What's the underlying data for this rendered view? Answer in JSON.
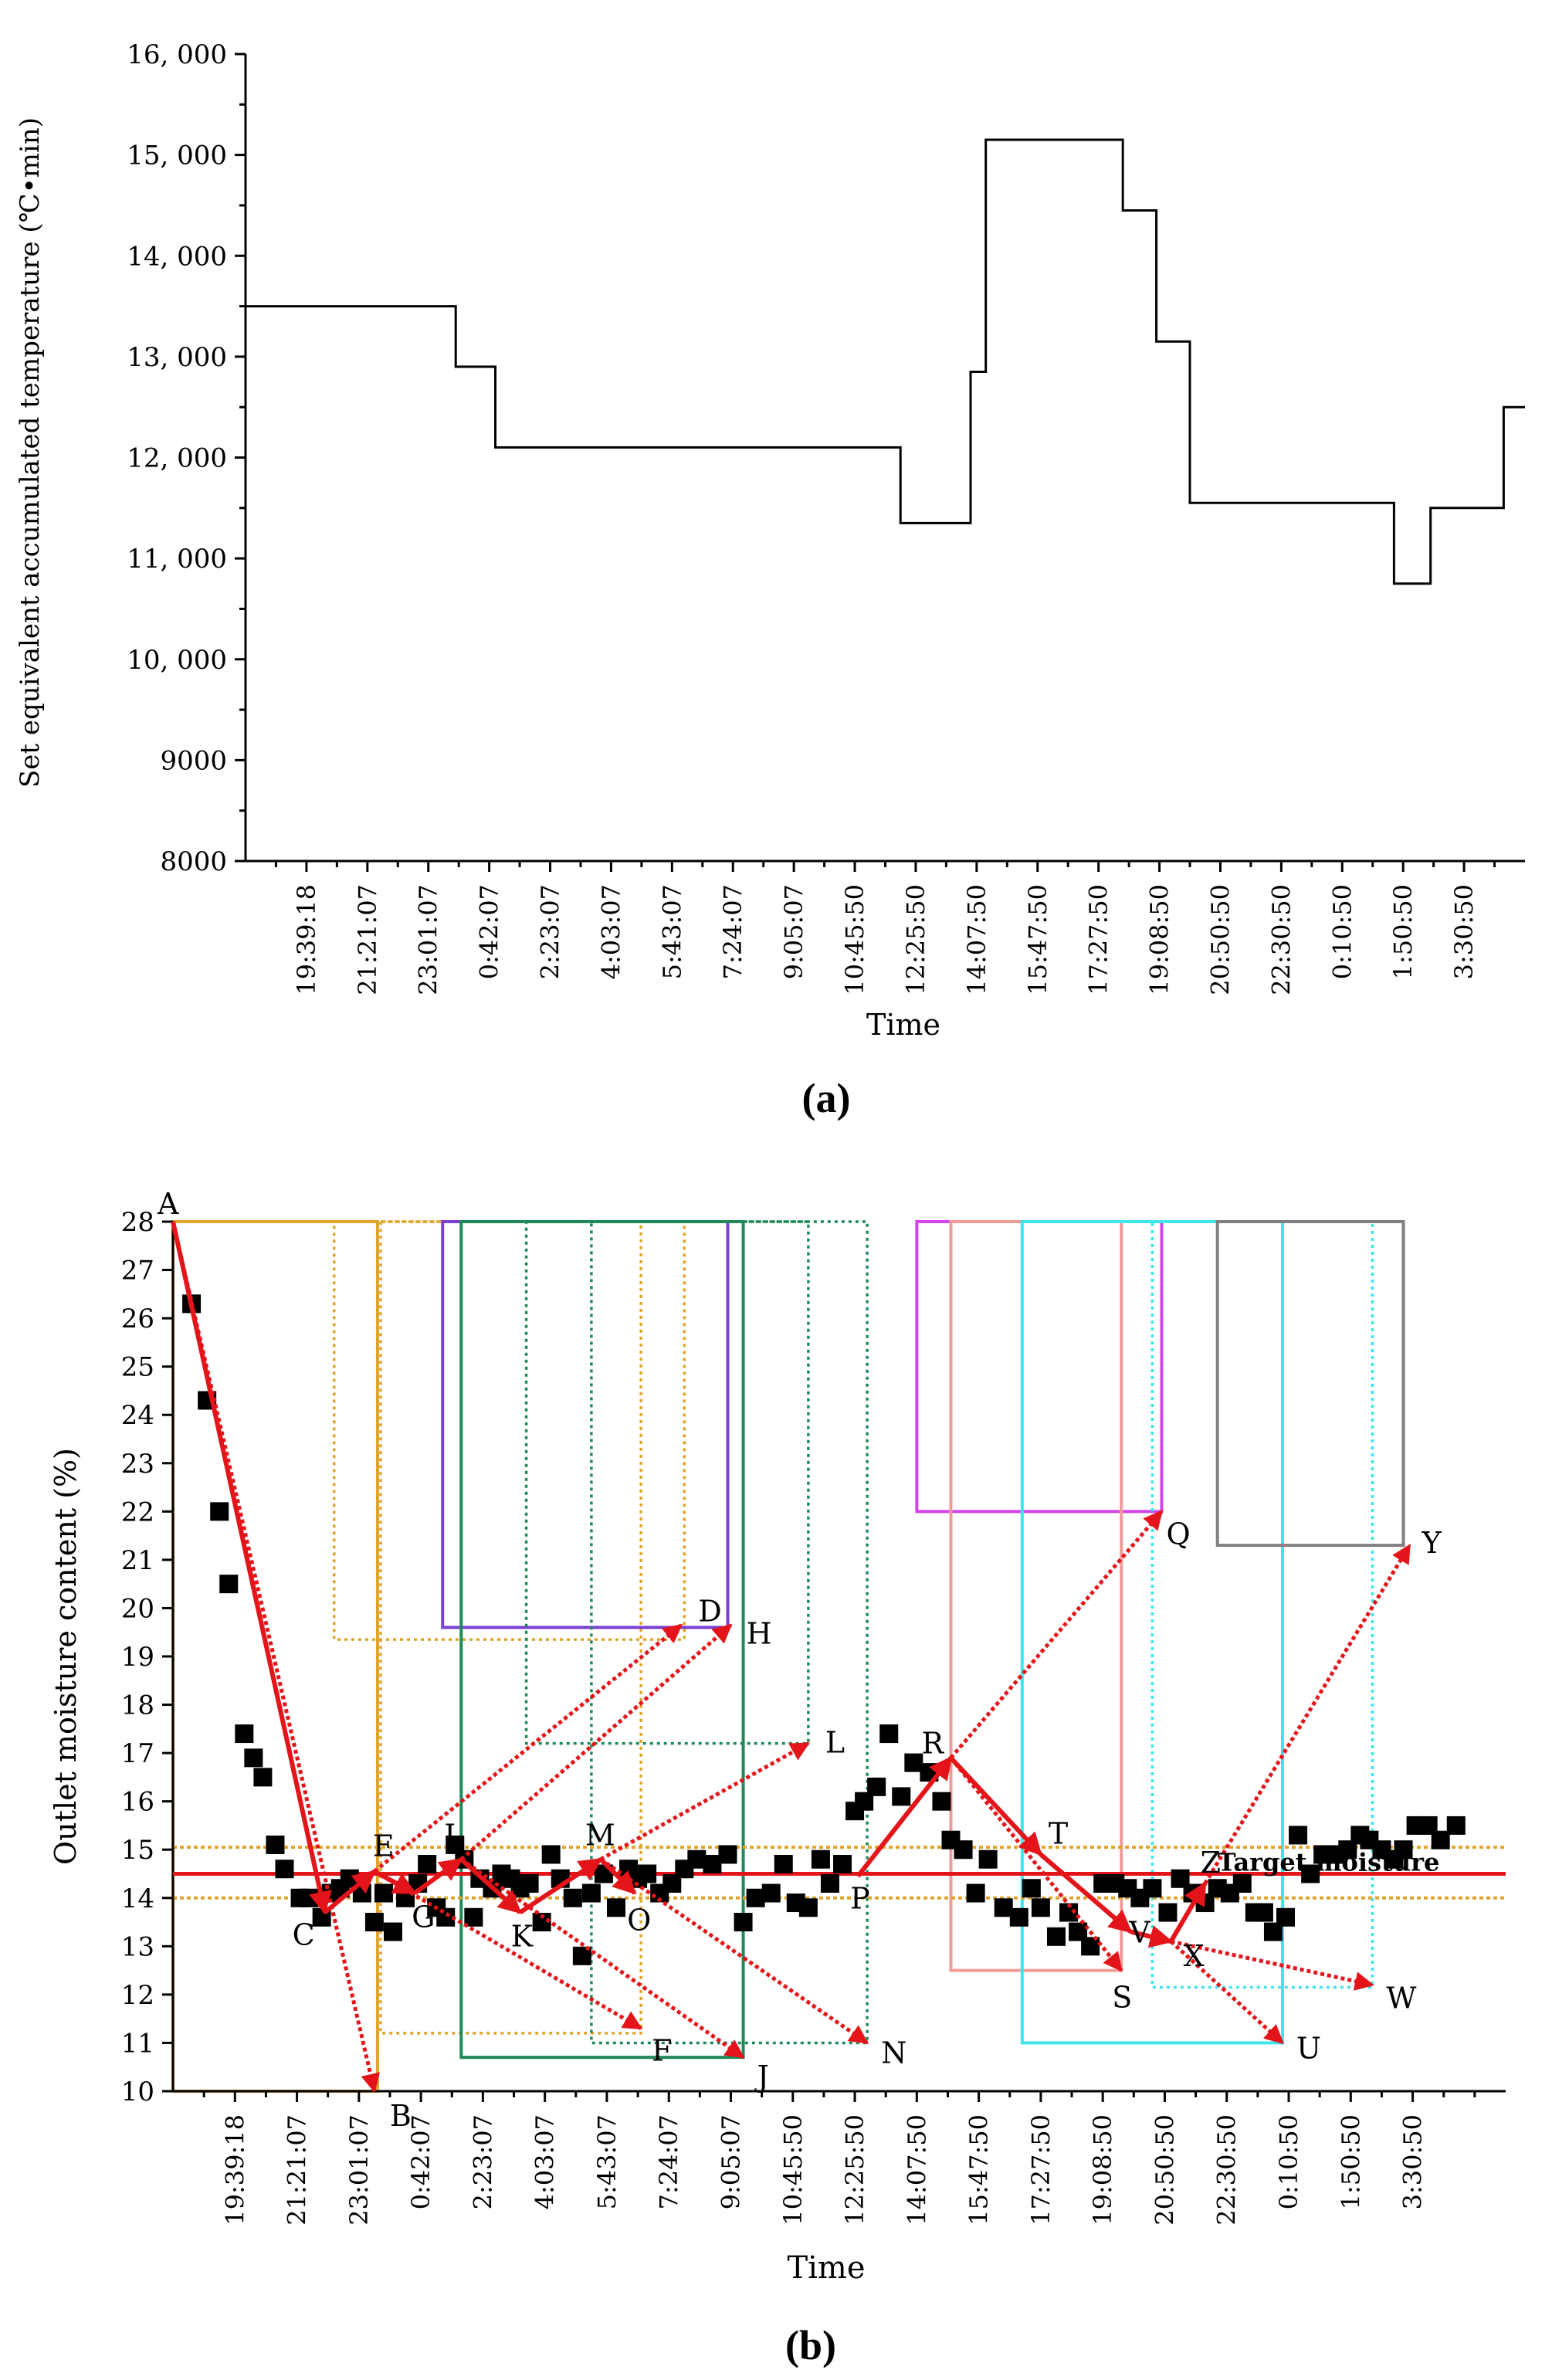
{
  "colors": {
    "axis": "#000000",
    "step_line": "#000000",
    "scatter": "#000000",
    "target_line": "#e3151a",
    "trend_arrow": "#e3151a",
    "band": "#e0a42a",
    "box_orange": "#e0a42a",
    "box_purple": "#7b3fd4",
    "box_green": "#1e8a57",
    "box_magenta": "#d445e8",
    "box_pink": "#f09a9a",
    "box_cyan": "#3fe4ec",
    "box_gray": "#808080"
  },
  "chart_data": [
    {
      "panel_label": "(a)",
      "panel_letter": "a",
      "type": "line",
      "style": "step",
      "xlabel": "Time",
      "ylabel": "Set equivalent accumulated temperature (℃•min)",
      "ylim": [
        8000,
        16000
      ],
      "yticks": [
        8000,
        9000,
        10000,
        11000,
        12000,
        13000,
        14000,
        15000,
        16000
      ],
      "ytick_labels": [
        "8000",
        "9000",
        "10, 000",
        "11, 000",
        "12, 000",
        "13, 000",
        "14, 000",
        "15, 000",
        "16, 000"
      ],
      "xlim": [
        0,
        21
      ],
      "xtick_positions": [
        1,
        2,
        3,
        4,
        5,
        6,
        7,
        8,
        9,
        10,
        11,
        12,
        13,
        14,
        15,
        16,
        17,
        18,
        19,
        20
      ],
      "xtick_labels": [
        "19:39:18",
        "21:21:07",
        "23:01:07",
        "0:42:07",
        "2:23:07",
        "4:03:07",
        "5:43:07",
        "7:24:07",
        "9:05:07",
        "10:45:50",
        "12:25:50",
        "14:07:50",
        "15:47:50",
        "17:27:50",
        "19:08:50",
        "20:50:50",
        "22:30:50",
        "0:10:50",
        "1:50:50",
        "3:30:50"
      ],
      "series": [
        {
          "name": "Set equivalent accumulated temperature",
          "x": [
            0,
            3.45,
            3.45,
            4.1,
            4.1,
            10.75,
            10.75,
            11.9,
            11.9,
            12.15,
            12.15,
            14.4,
            14.4,
            14.95,
            14.95,
            15.5,
            15.5,
            18.85,
            18.85,
            19.45,
            19.45,
            20.65,
            20.65,
            21
          ],
          "y": [
            13500,
            13500,
            12900,
            12900,
            12100,
            12100,
            11350,
            11350,
            12850,
            12850,
            15150,
            15150,
            14450,
            14450,
            13150,
            13150,
            11550,
            11550,
            10750,
            10750,
            11500,
            11500,
            12500,
            12500
          ]
        }
      ]
    },
    {
      "panel_label": "(b)",
      "panel_letter": "b",
      "type": "scatter",
      "xlabel": "Time",
      "ylabel": "Outlet moisture content (%)",
      "ylim": [
        10,
        28
      ],
      "yticks": [
        10,
        11,
        12,
        13,
        14,
        15,
        16,
        17,
        18,
        19,
        20,
        21,
        22,
        23,
        24,
        25,
        26,
        27,
        28
      ],
      "xlim": [
        0,
        21.5
      ],
      "xtick_positions": [
        1,
        2,
        3,
        4,
        5,
        6,
        7,
        8,
        9,
        10,
        11,
        12,
        13,
        14,
        15,
        16,
        17,
        18,
        19,
        20
      ],
      "xtick_labels": [
        "19:39:18",
        "21:21:07",
        "23:01:07",
        "0:42:07",
        "2:23:07",
        "4:03:07",
        "5:43:07",
        "7:24:07",
        "9:05:07",
        "10:45:50",
        "12:25:50",
        "14:07:50",
        "15:47:50",
        "17:27:50",
        "19:08:50",
        "20:50:50",
        "22:30:50",
        "0:10:50",
        "1:50:50",
        "3:30:50"
      ],
      "target_moisture": 14.5,
      "target_label": "Target moisture",
      "tolerance_band": [
        14.0,
        15.05
      ],
      "series": [
        {
          "name": "Outlet moisture content",
          "x": [
            0.3,
            0.55,
            0.75,
            0.9,
            1.15,
            1.3,
            1.45,
            1.65,
            1.8,
            2.05,
            2.2,
            2.4,
            2.55,
            2.7,
            2.85,
            3.05,
            3.25,
            3.4,
            3.55,
            3.75,
            3.95,
            4.1,
            4.25,
            4.4,
            4.55,
            4.7,
            4.85,
            4.95,
            5.15,
            5.3,
            5.45,
            5.6,
            5.75,
            5.95,
            6.1,
            6.25,
            6.45,
            6.6,
            6.75,
            6.95,
            7.15,
            7.35,
            7.5,
            7.65,
            7.85,
            8.05,
            8.25,
            8.45,
            8.7,
            8.95,
            9.2,
            9.4,
            9.65,
            9.85,
            10.05,
            10.25,
            10.45,
            10.6,
            10.8,
            11.0,
            11.15,
            11.35,
            11.55,
            11.75,
            11.95,
            12.2,
            12.4,
            12.55,
            12.75,
            12.95,
            13.15,
            13.4,
            13.65,
            13.85,
            14.0,
            14.25,
            14.45,
            14.6,
            14.8,
            15.0,
            15.2,
            15.4,
            15.6,
            15.8,
            16.05,
            16.25,
            16.45,
            16.65,
            16.85,
            17.05,
            17.25,
            17.45,
            17.6,
            17.75,
            17.95,
            18.15,
            18.35,
            18.55,
            18.75,
            18.95,
            19.15,
            19.3,
            19.5,
            19.7,
            19.85,
            20.05,
            20.25,
            20.45,
            20.7
          ],
          "y": [
            26.3,
            24.3,
            22.0,
            20.5,
            17.4,
            16.9,
            16.5,
            15.1,
            14.6,
            14.0,
            14.0,
            13.6,
            14.1,
            14.2,
            14.4,
            14.1,
            13.5,
            14.1,
            13.3,
            14.0,
            14.3,
            14.7,
            13.8,
            13.6,
            15.1,
            14.8,
            13.6,
            14.4,
            14.2,
            14.5,
            14.4,
            14.2,
            14.3,
            13.5,
            14.9,
            14.4,
            14.0,
            12.8,
            14.1,
            14.5,
            13.8,
            14.6,
            14.4,
            14.5,
            14.1,
            14.3,
            14.6,
            14.8,
            14.7,
            14.9,
            13.5,
            14.0,
            14.1,
            14.7,
            13.9,
            13.8,
            14.8,
            14.3,
            14.7,
            15.8,
            16.0,
            16.3,
            17.4,
            16.1,
            16.8,
            16.6,
            16.0,
            15.2,
            15.0,
            14.1,
            14.8,
            13.8,
            13.6,
            14.2,
            13.8,
            13.2,
            13.7,
            13.3,
            13.0,
            14.3,
            14.3,
            14.2,
            14.0,
            14.2,
            13.7,
            14.4,
            14.1,
            13.9,
            14.2,
            14.1,
            14.3,
            13.7,
            13.7,
            13.3,
            13.6,
            15.3,
            14.5,
            14.9,
            14.9,
            15.0,
            15.3,
            15.2,
            15.0,
            14.8,
            15.0,
            15.5,
            15.5,
            15.2,
            15.5
          ]
        }
      ],
      "points": [
        {
          "label": "A",
          "x": 0.0,
          "y": 28.0
        },
        {
          "label": "B",
          "x": 3.25,
          "y": 10.0
        },
        {
          "label": "C",
          "x": 2.45,
          "y": 13.7
        },
        {
          "label": "D",
          "x": 8.2,
          "y": 19.65
        },
        {
          "label": "E",
          "x": 3.25,
          "y": 14.55
        },
        {
          "label": "F",
          "x": 7.55,
          "y": 11.3
        },
        {
          "label": "G",
          "x": 3.9,
          "y": 14.1
        },
        {
          "label": "H",
          "x": 9.0,
          "y": 19.65
        },
        {
          "label": "I",
          "x": 4.65,
          "y": 14.8
        },
        {
          "label": "J",
          "x": 9.2,
          "y": 10.7
        },
        {
          "label": "K",
          "x": 5.6,
          "y": 13.7
        },
        {
          "label": "L",
          "x": 10.25,
          "y": 17.2
        },
        {
          "label": "M",
          "x": 6.9,
          "y": 14.8
        },
        {
          "label": "N",
          "x": 11.2,
          "y": 11.0
        },
        {
          "label": "O",
          "x": 7.45,
          "y": 14.1
        },
        {
          "label": "P",
          "x": 11.05,
          "y": 14.45
        },
        {
          "label": "Q",
          "x": 15.95,
          "y": 22.0
        },
        {
          "label": "R",
          "x": 12.55,
          "y": 16.9
        },
        {
          "label": "S",
          "x": 15.3,
          "y": 12.5
        },
        {
          "label": "T",
          "x": 14.0,
          "y": 14.9
        },
        {
          "label": "U",
          "x": 17.9,
          "y": 11.0
        },
        {
          "label": "V",
          "x": 15.45,
          "y": 13.3
        },
        {
          "label": "W",
          "x": 19.35,
          "y": 12.2
        },
        {
          "label": "X",
          "x": 16.1,
          "y": 13.1
        },
        {
          "label": "Y",
          "x": 19.95,
          "y": 21.3
        },
        {
          "label": "Z",
          "x": 16.65,
          "y": 14.3
        }
      ],
      "solid_arrows": [
        [
          "A",
          "C"
        ],
        [
          "C",
          "E"
        ],
        [
          "E",
          "G"
        ],
        [
          "G",
          "I"
        ],
        [
          "I",
          "K"
        ],
        [
          "K",
          "M"
        ],
        [
          "M",
          "O"
        ],
        [
          "P",
          "R"
        ],
        [
          "R",
          "T"
        ],
        [
          "T",
          "V"
        ],
        [
          "V",
          "X"
        ],
        [
          "X",
          "Z"
        ]
      ],
      "dotted_arrows": [
        [
          "A",
          "B"
        ],
        [
          "E",
          "D"
        ],
        [
          "E",
          "F"
        ],
        [
          "I",
          "H"
        ],
        [
          "I",
          "J"
        ],
        [
          "M",
          "L"
        ],
        [
          "M",
          "N"
        ],
        [
          "R",
          "Q"
        ],
        [
          "R",
          "S"
        ],
        [
          "X",
          "U"
        ],
        [
          "X",
          "W"
        ],
        [
          "Z",
          "Y"
        ]
      ],
      "boxes": [
        {
          "x": [
            0.0,
            3.3
          ],
          "y": [
            10.0,
            28.0
          ],
          "color_key": "box_orange",
          "style": "solid"
        },
        {
          "x": [
            2.6,
            8.25
          ],
          "y": [
            19.35,
            28.0
          ],
          "color_key": "box_orange",
          "style": "dotted"
        },
        {
          "x": [
            3.35,
            7.55
          ],
          "y": [
            11.2,
            28.0
          ],
          "color_key": "box_orange",
          "style": "dotted"
        },
        {
          "x": [
            4.35,
            8.95
          ],
          "y": [
            19.6,
            28.0
          ],
          "color_key": "box_purple",
          "style": "solid"
        },
        {
          "x": [
            4.65,
            9.2
          ],
          "y": [
            10.7,
            28.0
          ],
          "color_key": "box_green",
          "style": "solid"
        },
        {
          "x": [
            5.7,
            10.25
          ],
          "y": [
            17.2,
            28.0
          ],
          "color_key": "box_green",
          "style": "dotted"
        },
        {
          "x": [
            6.75,
            11.2
          ],
          "y": [
            11.0,
            28.0
          ],
          "color_key": "box_green",
          "style": "dotted"
        },
        {
          "x": [
            12.0,
            15.95
          ],
          "y": [
            22.0,
            28.0
          ],
          "color_key": "box_magenta",
          "style": "solid"
        },
        {
          "x": [
            12.55,
            15.3
          ],
          "y": [
            12.5,
            28.0
          ],
          "color_key": "box_pink",
          "style": "solid"
        },
        {
          "x": [
            13.7,
            17.9
          ],
          "y": [
            11.0,
            28.0
          ],
          "color_key": "box_cyan",
          "style": "solid"
        },
        {
          "x": [
            15.8,
            19.35
          ],
          "y": [
            12.15,
            28.0
          ],
          "color_key": "box_cyan",
          "style": "dotted"
        },
        {
          "x": [
            16.85,
            19.85
          ],
          "y": [
            21.3,
            28.0
          ],
          "color_key": "box_gray",
          "style": "solid"
        }
      ]
    }
  ]
}
